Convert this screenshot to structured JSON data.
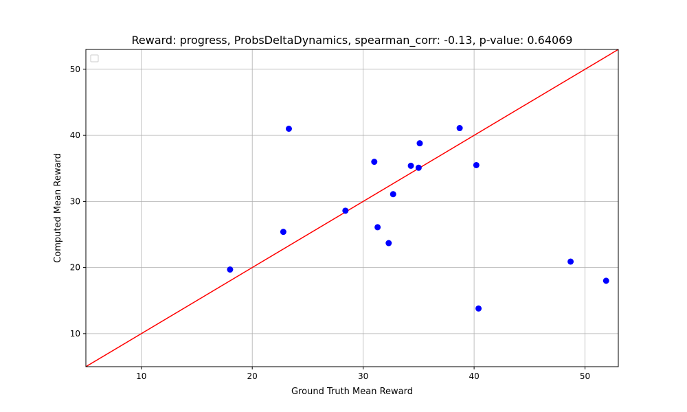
{
  "chart_data": {
    "type": "scatter",
    "title": "Reward: progress, ProbsDeltaDynamics, spearman_corr: -0.13, p-value: 0.64069",
    "xlabel": "Ground Truth Mean Reward",
    "ylabel": "Computed Mean Reward",
    "xlim": [
      5,
      53
    ],
    "ylim": [
      5,
      53
    ],
    "xticks": [
      10,
      20,
      30,
      40,
      50
    ],
    "yticks": [
      10,
      20,
      30,
      40,
      50
    ],
    "grid": true,
    "legend": "top-left (empty)",
    "colors": {
      "points": "#0000ff",
      "line": "#ff0000",
      "grid": "#b0b0b0"
    },
    "series": [
      {
        "type": "scatter",
        "color": "#0000ff",
        "x": [
          18.0,
          22.8,
          23.3,
          28.4,
          31.0,
          31.3,
          32.3,
          32.7,
          34.3,
          35.0,
          35.1,
          38.7,
          40.2,
          40.4,
          48.7,
          51.9
        ],
        "y": [
          19.7,
          25.4,
          41.0,
          28.6,
          36.0,
          26.1,
          23.7,
          31.1,
          35.4,
          35.1,
          38.8,
          41.1,
          35.5,
          13.8,
          20.9,
          18.0
        ]
      },
      {
        "type": "line",
        "color": "#ff0000",
        "x": [
          5,
          53
        ],
        "y": [
          5,
          53
        ]
      }
    ]
  }
}
